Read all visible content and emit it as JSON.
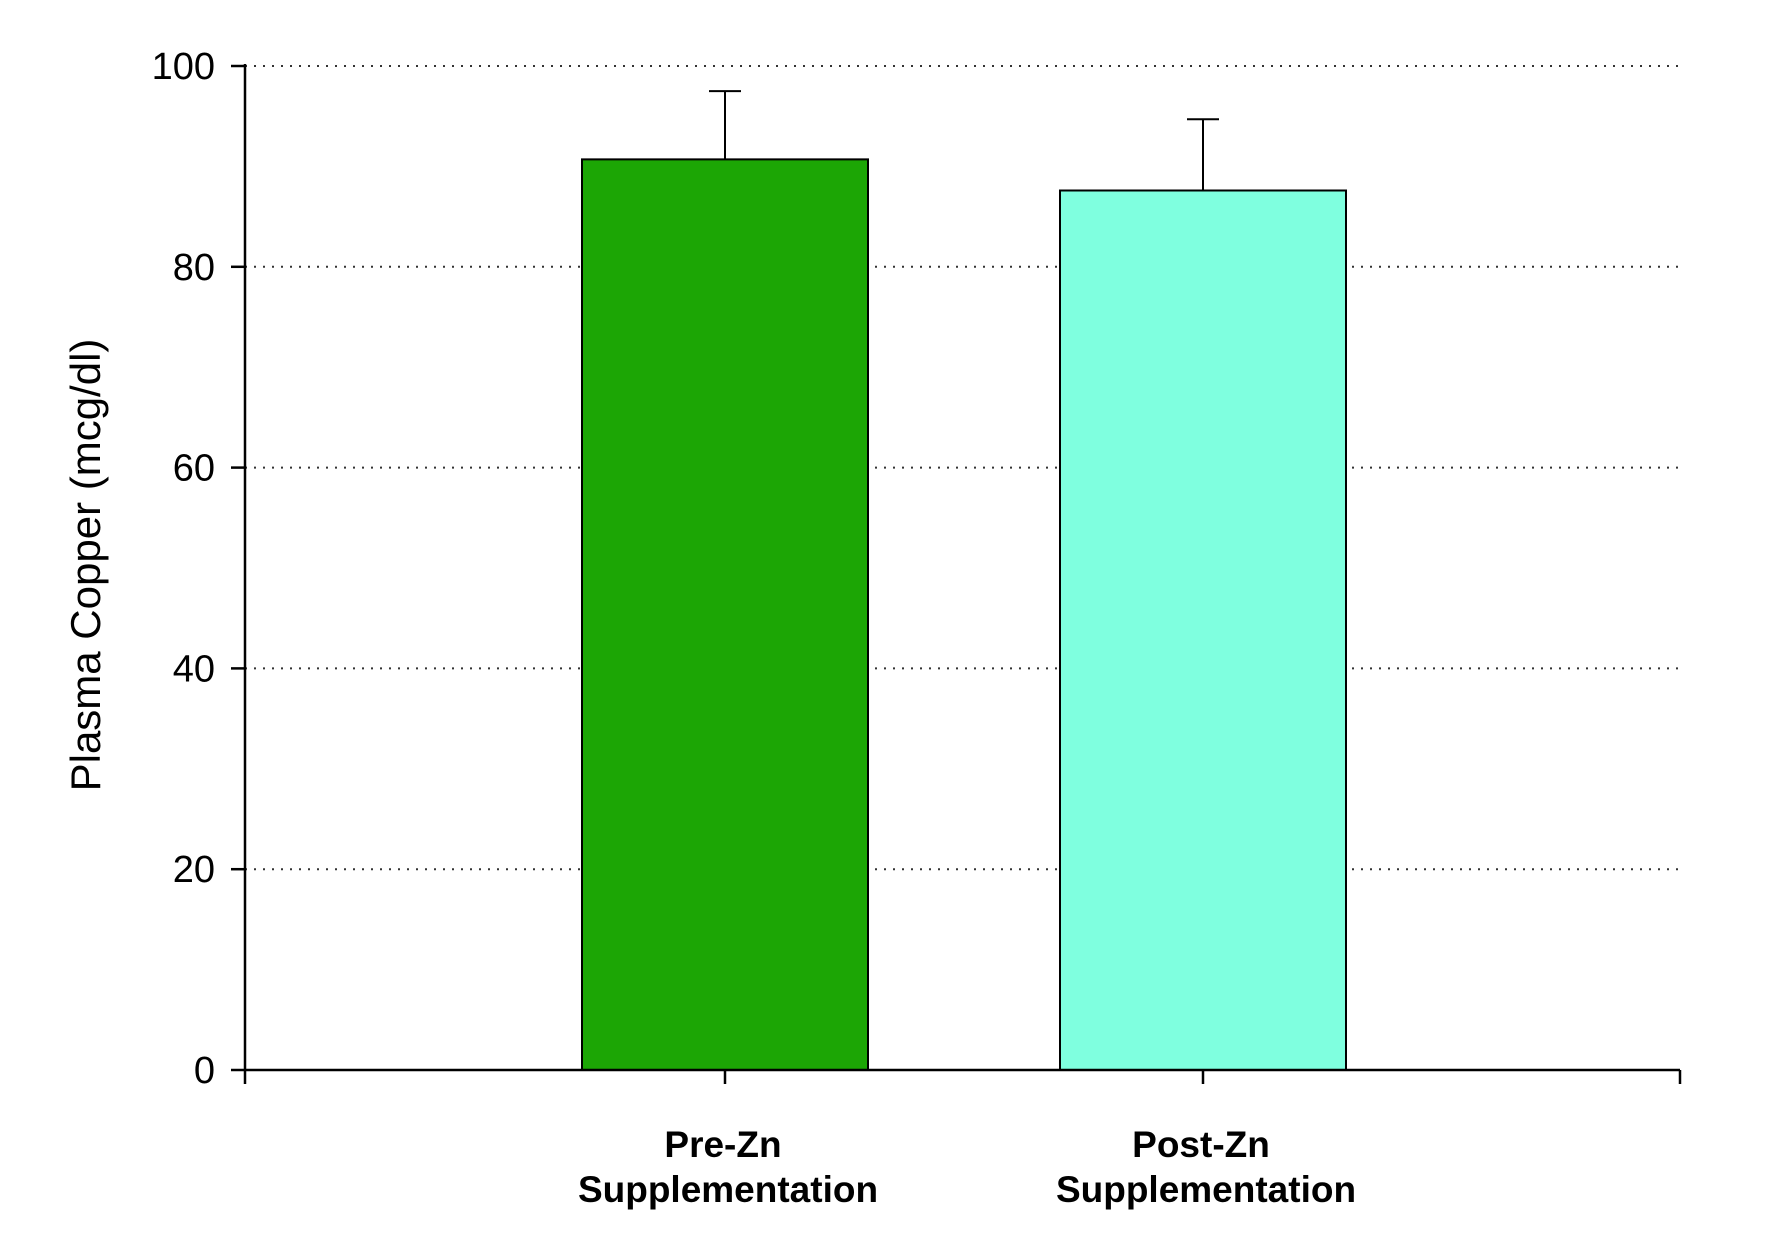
{
  "chart_data": {
    "type": "bar",
    "title": "",
    "xlabel": "",
    "ylabel": "Plasma Copper (mcg/dl)",
    "categories": [
      [
        "Pre-Zn",
        "Supplementation"
      ],
      [
        "Post-Zn",
        "Supplementation"
      ]
    ],
    "values": [
      90.7,
      87.6
    ],
    "error_upper": [
      6.8,
      7.1
    ],
    "bar_colors": [
      "#1ca605",
      "#7fffdf"
    ],
    "ylim": [
      0,
      100
    ],
    "yticks": [
      0,
      20,
      40,
      60,
      80,
      100
    ],
    "grid": "horizontal dotted",
    "legend": "none"
  }
}
